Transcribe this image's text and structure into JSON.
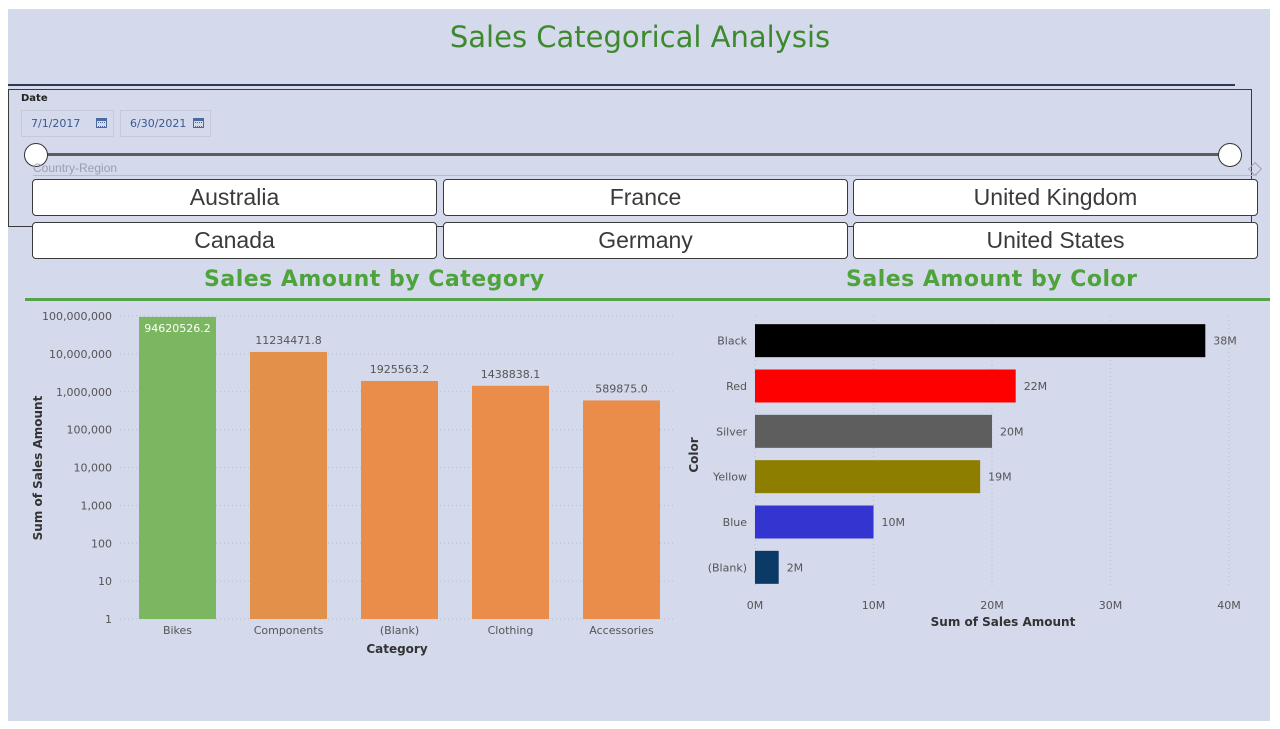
{
  "page": {
    "title": "Sales Categorical Analysis",
    "accent_green": "#4ea33b",
    "canvas_bg": "#d4d9ec"
  },
  "date_slicer": {
    "label": "Date",
    "start": "7/1/2017",
    "end": "6/30/2021",
    "range_fraction": [
      0,
      1
    ]
  },
  "country_slicer": {
    "label": "Country-Region",
    "options": [
      "Australia",
      "France",
      "United Kingdom",
      "Canada",
      "Germany",
      "United States"
    ]
  },
  "chart_data": [
    {
      "type": "bar",
      "title": "Sales Amount by Category",
      "xlabel": "Category",
      "ylabel": "Sum of Sales Amount",
      "yscale": "log",
      "ylim": [
        1,
        100000000
      ],
      "yticks": [
        "1",
        "10",
        "100",
        "1,000",
        "10,000",
        "100,000",
        "1,000,000",
        "10,000,000",
        "100,000,000"
      ],
      "categories": [
        "Bikes",
        "Components",
        "(Blank)",
        "Clothing",
        "Accessories"
      ],
      "values": [
        94620526.2,
        11234471.8,
        1925563.2,
        1438838.1,
        589875.0
      ],
      "data_labels": [
        "94620526.2",
        "11234471.8",
        "1925563.2",
        "1438838.1",
        "589875.0"
      ],
      "colors": [
        "#7bb661",
        "#e3904a",
        "#ea8c4a",
        "#ea8c4a",
        "#ea8c4a"
      ],
      "grid": true
    },
    {
      "type": "bar",
      "orientation": "horizontal",
      "title": "Sales Amount by Color",
      "xlabel": "Sum of Sales Amount",
      "ylabel": "Color",
      "xlim": [
        0,
        40
      ],
      "xticks": [
        "0M",
        "10M",
        "20M",
        "30M",
        "40M"
      ],
      "categories": [
        "Black",
        "Red",
        "Silver",
        "Yellow",
        "Blue",
        "(Blank)"
      ],
      "values": [
        38,
        22,
        20,
        19,
        10,
        2
      ],
      "data_labels": [
        "38M",
        "22M",
        "20M",
        "19M",
        "10M",
        "2M"
      ],
      "colors": [
        "#000000",
        "#ff0000",
        "#5e5e5e",
        "#8d7e00",
        "#3434d0",
        "#0c3a66"
      ],
      "grid": true
    }
  ]
}
